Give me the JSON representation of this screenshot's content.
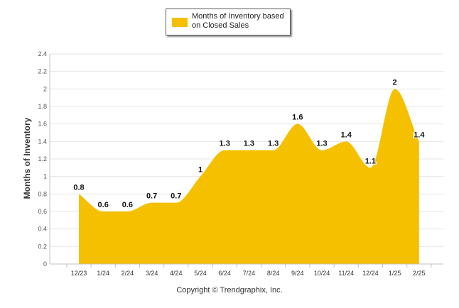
{
  "chart_data": {
    "type": "area",
    "ylabel": "Months of Inventory",
    "xlabel": "",
    "categories": [
      "12/23",
      "1/24",
      "2/24",
      "3/24",
      "4/24",
      "5/24",
      "6/24",
      "7/24",
      "8/24",
      "9/24",
      "10/24",
      "11/24",
      "12/24",
      "1/25",
      "2/25"
    ],
    "series": [
      {
        "name": "Months of Inventory based on Closed Sales",
        "values": [
          0.8,
          0.6,
          0.6,
          0.7,
          0.7,
          1,
          1.3,
          1.3,
          1.3,
          1.6,
          1.3,
          1.4,
          1.1,
          2,
          1.4
        ],
        "data_labels": [
          "0.8",
          "0.6",
          "0.6",
          "0.7",
          "0.7",
          "1",
          "1.3",
          "1.3",
          "1.3",
          "1.6",
          "1.3",
          "1.4",
          "1.1",
          "2",
          "1.4"
        ],
        "color": "#f5c000"
      }
    ],
    "ylim": [
      0,
      2.4
    ],
    "yticks": [
      "0",
      "0.2",
      "0.4",
      "0.6",
      "0.8",
      "1",
      "1.2",
      "1.4",
      "1.6",
      "1.8",
      "2",
      "2.2",
      "2.4"
    ],
    "grid": true,
    "legend_position": "top-center",
    "gridline_color": "#e6e6e6",
    "axis_color": "#c0c0c0"
  },
  "legend": {
    "label_line1": "Months of Inventory based",
    "label_line2": "on Closed Sales"
  },
  "footer": {
    "copyright": "Copyright © Trendgraphix, Inc."
  }
}
